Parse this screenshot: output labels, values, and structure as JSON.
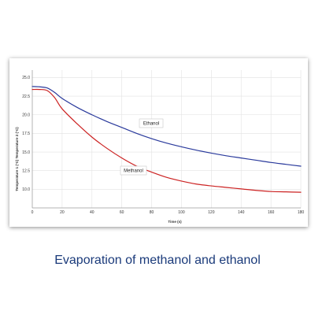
{
  "caption": "Evaporation of methanol and ethanol",
  "chart_data": {
    "type": "line",
    "title": "",
    "xlabel": "Time (s)",
    "ylabel": "Temperature 1 (°C) Temperature 2 (°C)",
    "xlim": [
      0,
      180
    ],
    "ylim": [
      7.5,
      26
    ],
    "xticks": [
      0,
      20,
      40,
      60,
      80,
      100,
      120,
      140,
      160,
      180
    ],
    "yticks": [
      10.0,
      12.5,
      15.0,
      17.5,
      20.0,
      22.5,
      25.0
    ],
    "grid": true,
    "series": [
      {
        "name": "Ethanol",
        "color": "#2a3a9c",
        "x": [
          0,
          5,
          10,
          15,
          20,
          30,
          40,
          50,
          60,
          70,
          80,
          90,
          100,
          110,
          120,
          130,
          140,
          150,
          160,
          170,
          180
        ],
        "y": [
          23.8,
          23.75,
          23.6,
          23.0,
          22.2,
          21.0,
          20.0,
          19.1,
          18.3,
          17.5,
          16.8,
          16.2,
          15.7,
          15.25,
          14.85,
          14.5,
          14.2,
          13.9,
          13.6,
          13.35,
          13.1
        ]
      },
      {
        "name": "Methanol",
        "color": "#cc2222",
        "x": [
          0,
          5,
          10,
          15,
          20,
          30,
          40,
          50,
          60,
          70,
          80,
          90,
          100,
          110,
          120,
          130,
          140,
          150,
          160,
          170,
          180
        ],
        "y": [
          23.4,
          23.4,
          23.25,
          22.3,
          20.8,
          18.8,
          17.0,
          15.5,
          14.2,
          13.1,
          12.3,
          11.6,
          11.1,
          10.7,
          10.45,
          10.25,
          10.05,
          9.85,
          9.7,
          9.65,
          9.6
        ]
      }
    ],
    "annotations": [
      {
        "text": "Ethanol",
        "series": "Ethanol"
      },
      {
        "text": "Methanol",
        "series": "Methanol"
      }
    ]
  }
}
